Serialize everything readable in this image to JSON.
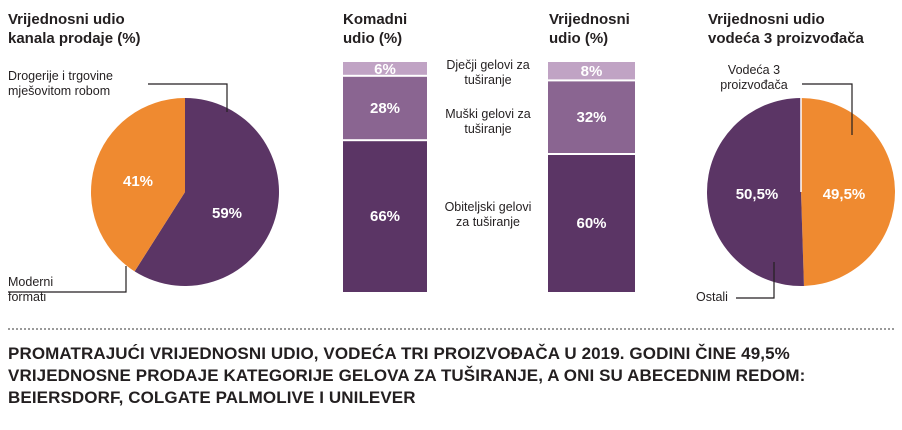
{
  "colors": {
    "purple": "#5b3565",
    "mid_purple": "#8a6591",
    "light_purple": "#c0a3c4",
    "orange": "#ef8a30",
    "text": "#231f20"
  },
  "headers": {
    "pie1": [
      "Vrijednosni udio",
      "kanala prodaje (%)"
    ],
    "bar1": [
      "Komadni",
      "udio (%)"
    ],
    "bar2": [
      "Vrijednosni",
      "udio (%)"
    ],
    "pie2": [
      "Vrijednosni udio",
      "vodeća 3 proizvođača"
    ]
  },
  "pie1_labels": {
    "drogerije": [
      "Drogerije i trgovine",
      "mješovitom robom"
    ],
    "moderni": [
      "Moderni",
      "formati"
    ]
  },
  "pie2_labels": {
    "vodeca": [
      "Vodeća 3",
      "proizvođača"
    ],
    "ostali": "Ostali"
  },
  "bar_category_labels": {
    "djecji": [
      "Dječji gelovi za",
      "tuširanje"
    ],
    "muski": [
      "Muški gelovi za",
      "tuširanje"
    ],
    "obiteljski": [
      "Obiteljski gelovi",
      "za tuširanje"
    ]
  },
  "caption": "PROMATRAJUĆI VRIJEDNOSNI UDIO, VODEĆA TRI PROIZVOĐAČA U 2019. GODINI ČINE 49,5% VRIJEDNOSNE PRODAJE KATEGORIJE GELOVA ZA TUŠIRANJE, A ONI SU ABECEDNIM REDOM: BEIERSDORF, COLGATE PALMOLIVE I UNILEVER",
  "chart_data": [
    {
      "type": "pie",
      "title": "Vrijednosni udio kanala prodaje (%)",
      "slices": [
        {
          "name": "Drogerije i trgovine mješovitom robom",
          "value": 59,
          "label": "59%"
        },
        {
          "name": "Moderni formati",
          "value": 41,
          "label": "41%"
        }
      ]
    },
    {
      "type": "bar",
      "title": "Komadni udio (%)",
      "stacked": true,
      "categories": [
        "Obiteljski gelovi za tuširanje",
        "Muški gelovi za tuširanje",
        "Dječji gelovi za tuširanje"
      ],
      "values": [
        66,
        28,
        6
      ],
      "labels": [
        "66%",
        "28%",
        "6%"
      ]
    },
    {
      "type": "bar",
      "title": "Vrijednosni udio (%)",
      "stacked": true,
      "categories": [
        "Obiteljski gelovi za tuširanje",
        "Muški gelovi za tuširanje",
        "Dječji gelovi za tuširanje"
      ],
      "values": [
        60,
        32,
        8
      ],
      "labels": [
        "60%",
        "32%",
        "8%"
      ]
    },
    {
      "type": "pie",
      "title": "Vrijednosni udio vodeća 3 proizvođača",
      "slices": [
        {
          "name": "Vodeća 3 proizvođača",
          "value": 49.5,
          "label": "49,5%"
        },
        {
          "name": "Ostali",
          "value": 50.5,
          "label": "50,5%"
        }
      ]
    }
  ]
}
